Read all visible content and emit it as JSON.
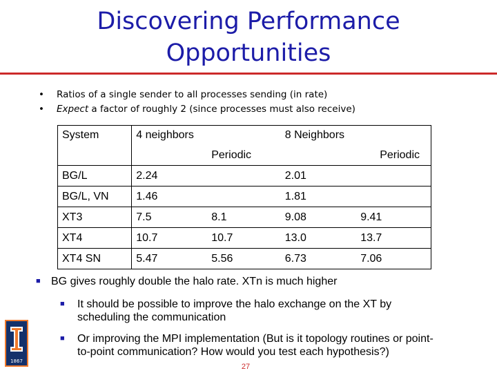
{
  "slide": {
    "title_line1": "Discovering Performance",
    "title_line2": "Opportunities",
    "intro_bullets": [
      {
        "text": "Ratios of a single sender to all processes sending (in rate)"
      },
      {
        "emphasis": "Expect",
        "text": " a factor of roughly 2 (since processes must also receive)"
      }
    ],
    "main_bullet": "BG gives roughly double the halo rate.  XTn is much higher",
    "sub_bullets": [
      {
        "line1": "It should be possible to improve the halo exchange on the XT by",
        "line2": "scheduling the communication"
      },
      {
        "line1": "Or improving the MPI implementation (But is it topology routines or point-",
        "line2": "to-point communication?  How would you test each hypothesis?)"
      }
    ],
    "page_number": "27",
    "logo_year": "1867",
    "accent_color": "#1c1ca8",
    "rule_color": "#cc2a2a"
  },
  "table": {
    "header": {
      "system": "System",
      "four": "4 neighbors",
      "eight": "8 Neighbors",
      "periodic": "Periodic"
    },
    "rows": [
      {
        "system": "BG/L",
        "n4": "2.24",
        "n4p": "",
        "n8": "2.01",
        "n8p": ""
      },
      {
        "system": "BG/L, VN",
        "n4": "1.46",
        "n4p": "",
        "n8": "1.81",
        "n8p": ""
      },
      {
        "system": "XT3",
        "n4": "7.5",
        "n4p": "8.1",
        "n8": "9.08",
        "n8p": "9.41"
      },
      {
        "system": "XT4",
        "n4": "10.7",
        "n4p": "10.7",
        "n8": "13.0",
        "n8p": "13.7"
      },
      {
        "system": "XT4 SN",
        "n4": "5.47",
        "n4p": "5.56",
        "n8": "6.73",
        "n8p": "7.06"
      }
    ]
  }
}
